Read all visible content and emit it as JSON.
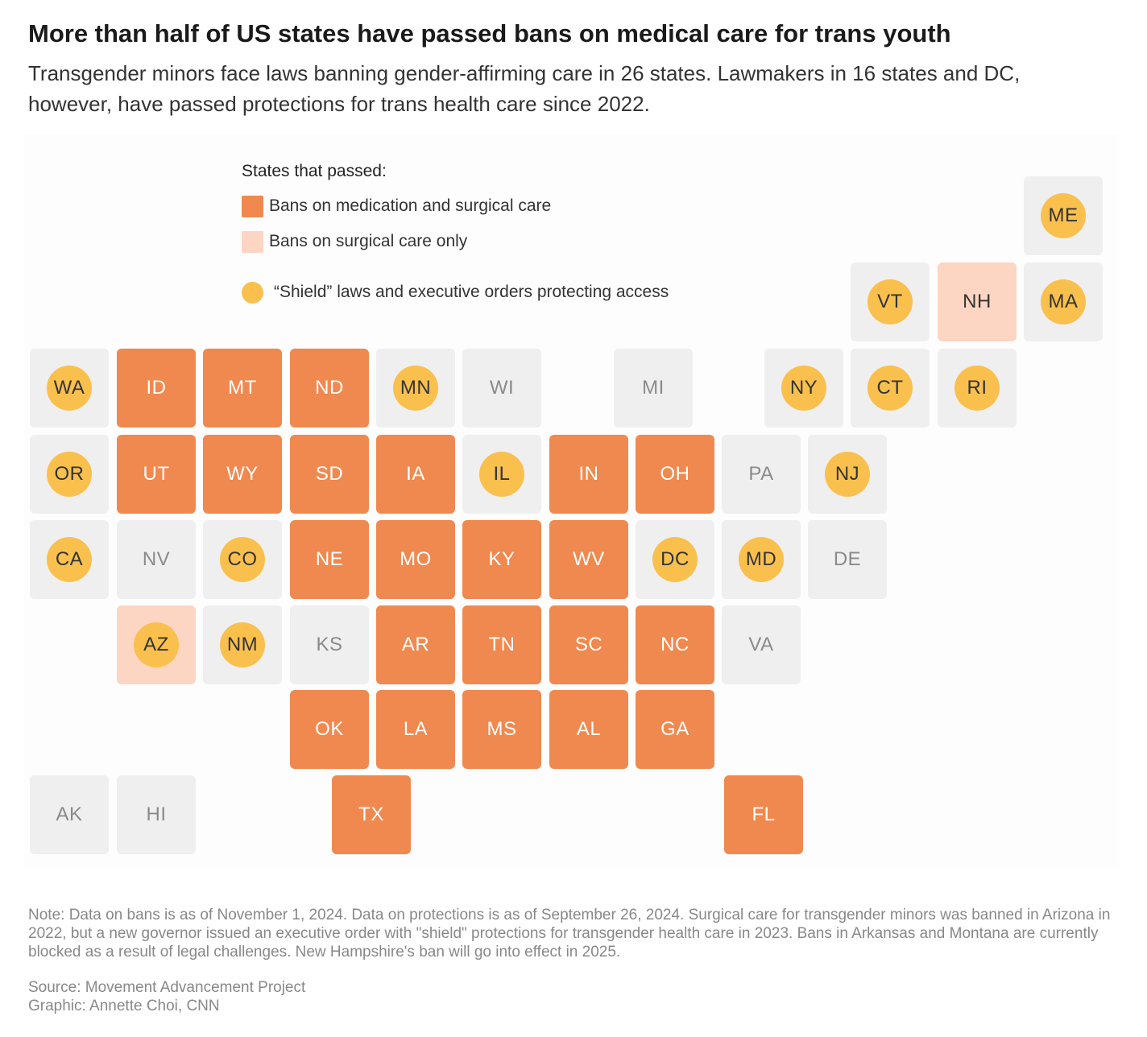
{
  "title": "More than half of US states have passed bans on medical care for trans youth",
  "subtitle": "Transgender minors face laws banning gender-affirming care in 26 states. Lawmakers in 16 states and DC, however, have passed protections for trans health care since 2022.",
  "legend": {
    "title": "States that passed:",
    "full_ban": "Bans on medication and surgical care",
    "surgical_ban": "Bans on surgical care only",
    "shield": "“Shield” laws and executive orders protecting access"
  },
  "colors": {
    "full_ban": "#f0894f",
    "surgical_ban": "#fdd5c3",
    "none": "#efefef",
    "shield": "#f9c04e",
    "label_on_orange": "#ffffff",
    "label_on_gray": "#8a8a8a",
    "label_on_shield": "#333333"
  },
  "states": [
    {
      "abbr": "ME",
      "status": "none",
      "shield": true
    },
    {
      "abbr": "VT",
      "status": "none",
      "shield": true
    },
    {
      "abbr": "NH",
      "status": "surgical_ban",
      "shield": false
    },
    {
      "abbr": "MA",
      "status": "none",
      "shield": true
    },
    {
      "abbr": "WA",
      "status": "none",
      "shield": true
    },
    {
      "abbr": "ID",
      "status": "full_ban",
      "shield": false
    },
    {
      "abbr": "MT",
      "status": "full_ban",
      "shield": false
    },
    {
      "abbr": "ND",
      "status": "full_ban",
      "shield": false
    },
    {
      "abbr": "MN",
      "status": "none",
      "shield": true
    },
    {
      "abbr": "WI",
      "status": "none",
      "shield": false
    },
    {
      "abbr": "MI",
      "status": "none",
      "shield": false
    },
    {
      "abbr": "NY",
      "status": "none",
      "shield": true
    },
    {
      "abbr": "CT",
      "status": "none",
      "shield": true
    },
    {
      "abbr": "RI",
      "status": "none",
      "shield": true
    },
    {
      "abbr": "OR",
      "status": "none",
      "shield": true
    },
    {
      "abbr": "UT",
      "status": "full_ban",
      "shield": false
    },
    {
      "abbr": "WY",
      "status": "full_ban",
      "shield": false
    },
    {
      "abbr": "SD",
      "status": "full_ban",
      "shield": false
    },
    {
      "abbr": "IA",
      "status": "full_ban",
      "shield": false
    },
    {
      "abbr": "IL",
      "status": "none",
      "shield": true
    },
    {
      "abbr": "IN",
      "status": "full_ban",
      "shield": false
    },
    {
      "abbr": "OH",
      "status": "full_ban",
      "shield": false
    },
    {
      "abbr": "PA",
      "status": "none",
      "shield": false
    },
    {
      "abbr": "NJ",
      "status": "none",
      "shield": true
    },
    {
      "abbr": "CA",
      "status": "none",
      "shield": true
    },
    {
      "abbr": "NV",
      "status": "none",
      "shield": false
    },
    {
      "abbr": "CO",
      "status": "none",
      "shield": true
    },
    {
      "abbr": "NE",
      "status": "full_ban",
      "shield": false
    },
    {
      "abbr": "MO",
      "status": "full_ban",
      "shield": false
    },
    {
      "abbr": "KY",
      "status": "full_ban",
      "shield": false
    },
    {
      "abbr": "WV",
      "status": "full_ban",
      "shield": false
    },
    {
      "abbr": "DC",
      "status": "none",
      "shield": true
    },
    {
      "abbr": "MD",
      "status": "none",
      "shield": true
    },
    {
      "abbr": "DE",
      "status": "none",
      "shield": false
    },
    {
      "abbr": "AZ",
      "status": "surgical_ban",
      "shield": true
    },
    {
      "abbr": "NM",
      "status": "none",
      "shield": true
    },
    {
      "abbr": "KS",
      "status": "none",
      "shield": false
    },
    {
      "abbr": "AR",
      "status": "full_ban",
      "shield": false
    },
    {
      "abbr": "TN",
      "status": "full_ban",
      "shield": false
    },
    {
      "abbr": "SC",
      "status": "full_ban",
      "shield": false
    },
    {
      "abbr": "NC",
      "status": "full_ban",
      "shield": false
    },
    {
      "abbr": "VA",
      "status": "none",
      "shield": false
    },
    {
      "abbr": "OK",
      "status": "full_ban",
      "shield": false
    },
    {
      "abbr": "LA",
      "status": "full_ban",
      "shield": false
    },
    {
      "abbr": "MS",
      "status": "full_ban",
      "shield": false
    },
    {
      "abbr": "AL",
      "status": "full_ban",
      "shield": false
    },
    {
      "abbr": "GA",
      "status": "full_ban",
      "shield": false
    },
    {
      "abbr": "AK",
      "status": "none",
      "shield": false
    },
    {
      "abbr": "HI",
      "status": "none",
      "shield": false
    },
    {
      "abbr": "TX",
      "status": "full_ban",
      "shield": false
    },
    {
      "abbr": "FL",
      "status": "full_ban",
      "shield": false
    }
  ],
  "note": "Note: Data on bans is as of November 1, 2024. Data on protections is as of September 26, 2024. Surgical care for transgender minors was banned in Arizona in 2022, but a new governor issued an executive order with \"shield\" protections for transgender health care in 2023. Bans in Arkansas and Montana are currently blocked as a result of legal challenges. New Hampshire's ban will go into effect in 2025.",
  "source": "Source: Movement Advancement Project",
  "credit": "Graphic: Annette Choi, CNN"
}
